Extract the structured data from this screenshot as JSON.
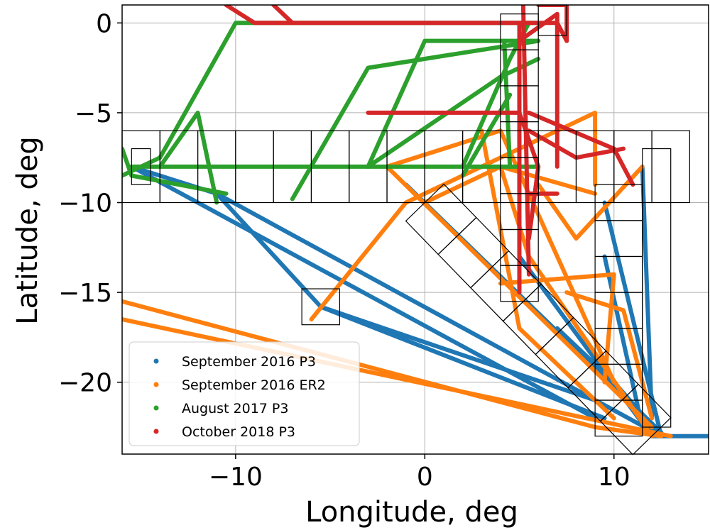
{
  "chart_data": {
    "type": "scatter",
    "title": "",
    "xlabel": "Longitude, deg",
    "ylabel": "Latitude, deg",
    "xlim": [
      -16,
      15
    ],
    "ylim": [
      -24,
      1
    ],
    "xticks": [
      -10,
      0,
      10
    ],
    "yticks": [
      0,
      -5,
      -10,
      -15,
      -20
    ],
    "xtick_labels": [
      "−10",
      "0",
      "10"
    ],
    "ytick_labels": [
      "0",
      "−5",
      "−10",
      "−15",
      "−20"
    ],
    "grid": true,
    "legend_position": "lower-left",
    "series": [
      {
        "name": "September 2016 P3",
        "color": "#1f77b4",
        "tracks": [
          [
            [
              -15.5,
              -8.0
            ],
            [
              -11,
              -9.5
            ],
            [
              -5.5,
              -15.8
            ],
            [
              9,
              -21
            ]
          ],
          [
            [
              -15.5,
              -8.0
            ],
            [
              9,
              -22
            ]
          ],
          [
            [
              -11,
              -9.5
            ],
            [
              12.5,
              -23
            ]
          ],
          [
            [
              -5.5,
              -15.8
            ],
            [
              9.5,
              -22
            ]
          ],
          [
            [
              -1,
              -9
            ],
            [
              12.5,
              -22.8
            ]
          ],
          [
            [
              5,
              -13
            ],
            [
              12,
              -23
            ]
          ],
          [
            [
              9.5,
              -10
            ],
            [
              12.5,
              -23
            ]
          ],
          [
            [
              11.5,
              -8
            ],
            [
              12,
              -22
            ]
          ],
          [
            [
              9.5,
              -13
            ],
            [
              11.5,
              -22.5
            ]
          ],
          [
            [
              7,
              -17
            ],
            [
              10,
              -20
            ],
            [
              12.5,
              -23
            ]
          ],
          [
            [
              12,
              -23
            ],
            [
              15,
              -23
            ]
          ]
        ]
      },
      {
        "name": "September 2016 ER2",
        "color": "#ff7f0e",
        "tracks": [
          [
            [
              -16,
              -15.5
            ],
            [
              9,
              -22.5
            ],
            [
              12.5,
              -23
            ]
          ],
          [
            [
              -16,
              -16.5
            ],
            [
              13,
              -23
            ]
          ],
          [
            [
              -6,
              -16.5
            ],
            [
              -1,
              -10
            ],
            [
              5,
              -7
            ],
            [
              9,
              -5
            ],
            [
              9,
              -9
            ]
          ],
          [
            [
              -2,
              -8
            ],
            [
              4,
              -6
            ],
            [
              10,
              -20
            ]
          ],
          [
            [
              -2,
              -8
            ],
            [
              12,
              -22.5
            ]
          ],
          [
            [
              0,
              -10
            ],
            [
              4,
              -8
            ],
            [
              9,
              -9.5
            ]
          ],
          [
            [
              3,
              -6
            ],
            [
              5,
              -17
            ],
            [
              10,
              -22
            ]
          ],
          [
            [
              6,
              -9
            ],
            [
              8,
              -12
            ],
            [
              11.5,
              -8
            ]
          ],
          [
            [
              4,
              -8
            ],
            [
              5.5,
              -13
            ],
            [
              12,
              -23
            ]
          ],
          [
            [
              7.5,
              -15
            ],
            [
              10.5,
              -16
            ],
            [
              12,
              -22
            ]
          ],
          [
            [
              4,
              -14.5
            ],
            [
              10,
              -14
            ],
            [
              9.5,
              -20
            ]
          ]
        ]
      },
      {
        "name": "August 2017 P3",
        "color": "#2ca02c",
        "tracks": [
          [
            [
              -16,
              -7
            ],
            [
              -15.5,
              -8.5
            ],
            [
              -10.5,
              -9.5
            ]
          ],
          [
            [
              -16,
              -8.5
            ],
            [
              -14,
              -7.5
            ],
            [
              -10,
              0
            ],
            [
              6,
              0
            ]
          ],
          [
            [
              -14,
              -8
            ],
            [
              -12,
              -5
            ],
            [
              -11,
              -10
            ]
          ],
          [
            [
              -15.5,
              -8
            ],
            [
              6,
              -8
            ]
          ],
          [
            [
              -7,
              -9.8
            ],
            [
              -3,
              -2.5
            ],
            [
              6,
              -1
            ]
          ],
          [
            [
              -3,
              -8
            ],
            [
              0,
              -1
            ],
            [
              6,
              -1
            ]
          ],
          [
            [
              2,
              -8.5
            ],
            [
              4.5,
              -4
            ]
          ],
          [
            [
              -3,
              -8
            ],
            [
              4,
              -3
            ],
            [
              6,
              -2
            ]
          ],
          [
            [
              2,
              -8
            ],
            [
              4.5,
              -2
            ],
            [
              5.5,
              0
            ]
          ],
          [
            [
              4.2,
              -1
            ],
            [
              4.5,
              -8
            ]
          ]
        ]
      },
      {
        "name": "October 2018 P3",
        "color": "#d62728",
        "tracks": [
          [
            [
              -10.5,
              1
            ],
            [
              -9,
              0
            ],
            [
              5.5,
              0
            ]
          ],
          [
            [
              -8,
              1
            ],
            [
              -7,
              0
            ]
          ],
          [
            [
              -3,
              -5
            ],
            [
              5,
              -5
            ]
          ],
          [
            [
              5,
              0
            ],
            [
              5,
              -15
            ]
          ],
          [
            [
              5.2,
              1
            ],
            [
              5.5,
              -14
            ]
          ],
          [
            [
              5.5,
              -5
            ],
            [
              10,
              -7
            ],
            [
              11,
              -9
            ]
          ],
          [
            [
              5.5,
              -6
            ],
            [
              8,
              -7.5
            ],
            [
              10.5,
              -7
            ]
          ],
          [
            [
              5.5,
              -9.5
            ],
            [
              7,
              -9.5
            ]
          ],
          [
            [
              5,
              -1
            ],
            [
              7,
              0.5
            ],
            [
              7,
              -8
            ]
          ],
          [
            [
              5,
              0
            ],
            [
              7,
              0
            ],
            [
              7.5,
              -1
            ]
          ],
          [
            [
              6,
              1
            ],
            [
              7.5,
              1
            ],
            [
              7.5,
              -1
            ]
          ],
          [
            [
              5,
              -5
            ],
            [
              6,
              -8
            ],
            [
              5.5,
              -12
            ]
          ]
        ]
      }
    ],
    "regions": {
      "strip_lat_boxes": [
        [
          -16,
          -14
        ],
        [
          -14,
          -12
        ],
        [
          -12,
          -10
        ],
        [
          -10,
          -8
        ],
        [
          -8,
          -6
        ],
        [
          -6,
          -4
        ],
        [
          -4,
          -2
        ],
        [
          -2,
          0
        ],
        [
          0,
          2
        ],
        [
          2,
          4
        ],
        [
          4,
          6
        ],
        [
          6,
          8
        ],
        [
          8,
          10
        ],
        [
          10,
          12
        ],
        [
          12,
          14
        ]
      ],
      "strip_lat_range": [
        -10,
        -6
      ],
      "column_a_lon": [
        4,
        6
      ],
      "column_a_lat_boxes": [
        [
          -15.5,
          -13.5
        ],
        [
          -13.5,
          -11.5
        ],
        [
          -11.5,
          -9.5
        ],
        [
          -9.5,
          -7.5
        ],
        [
          -7.5,
          -5.5
        ],
        [
          -5.5,
          -3.5
        ],
        [
          -3.5,
          -1.5
        ],
        [
          -1.5,
          0.5
        ]
      ],
      "column_b_lon": [
        9,
        11.5
      ],
      "column_b_lat_boxes": [
        [
          -23,
          -21
        ],
        [
          -21,
          -19
        ],
        [
          -19,
          -17
        ],
        [
          -17,
          -15
        ],
        [
          -15,
          -13
        ],
        [
          -13,
          -11
        ],
        [
          -11,
          -9
        ]
      ],
      "single_boxes": [
        [
          -15.5,
          -14.5,
          -9,
          -7
        ],
        [
          -6.5,
          -4.5,
          -16.8,
          -14.8
        ],
        [
          6,
          7.5,
          -0.7,
          1
        ],
        [
          11.5,
          13,
          -22.5,
          -7
        ]
      ],
      "diagonal_center_line": [
        [
          0,
          -10
        ],
        [
          12,
          -23
        ]
      ],
      "diagonal_half_width_deg": 1.4,
      "diagonal_segments": 7
    }
  }
}
